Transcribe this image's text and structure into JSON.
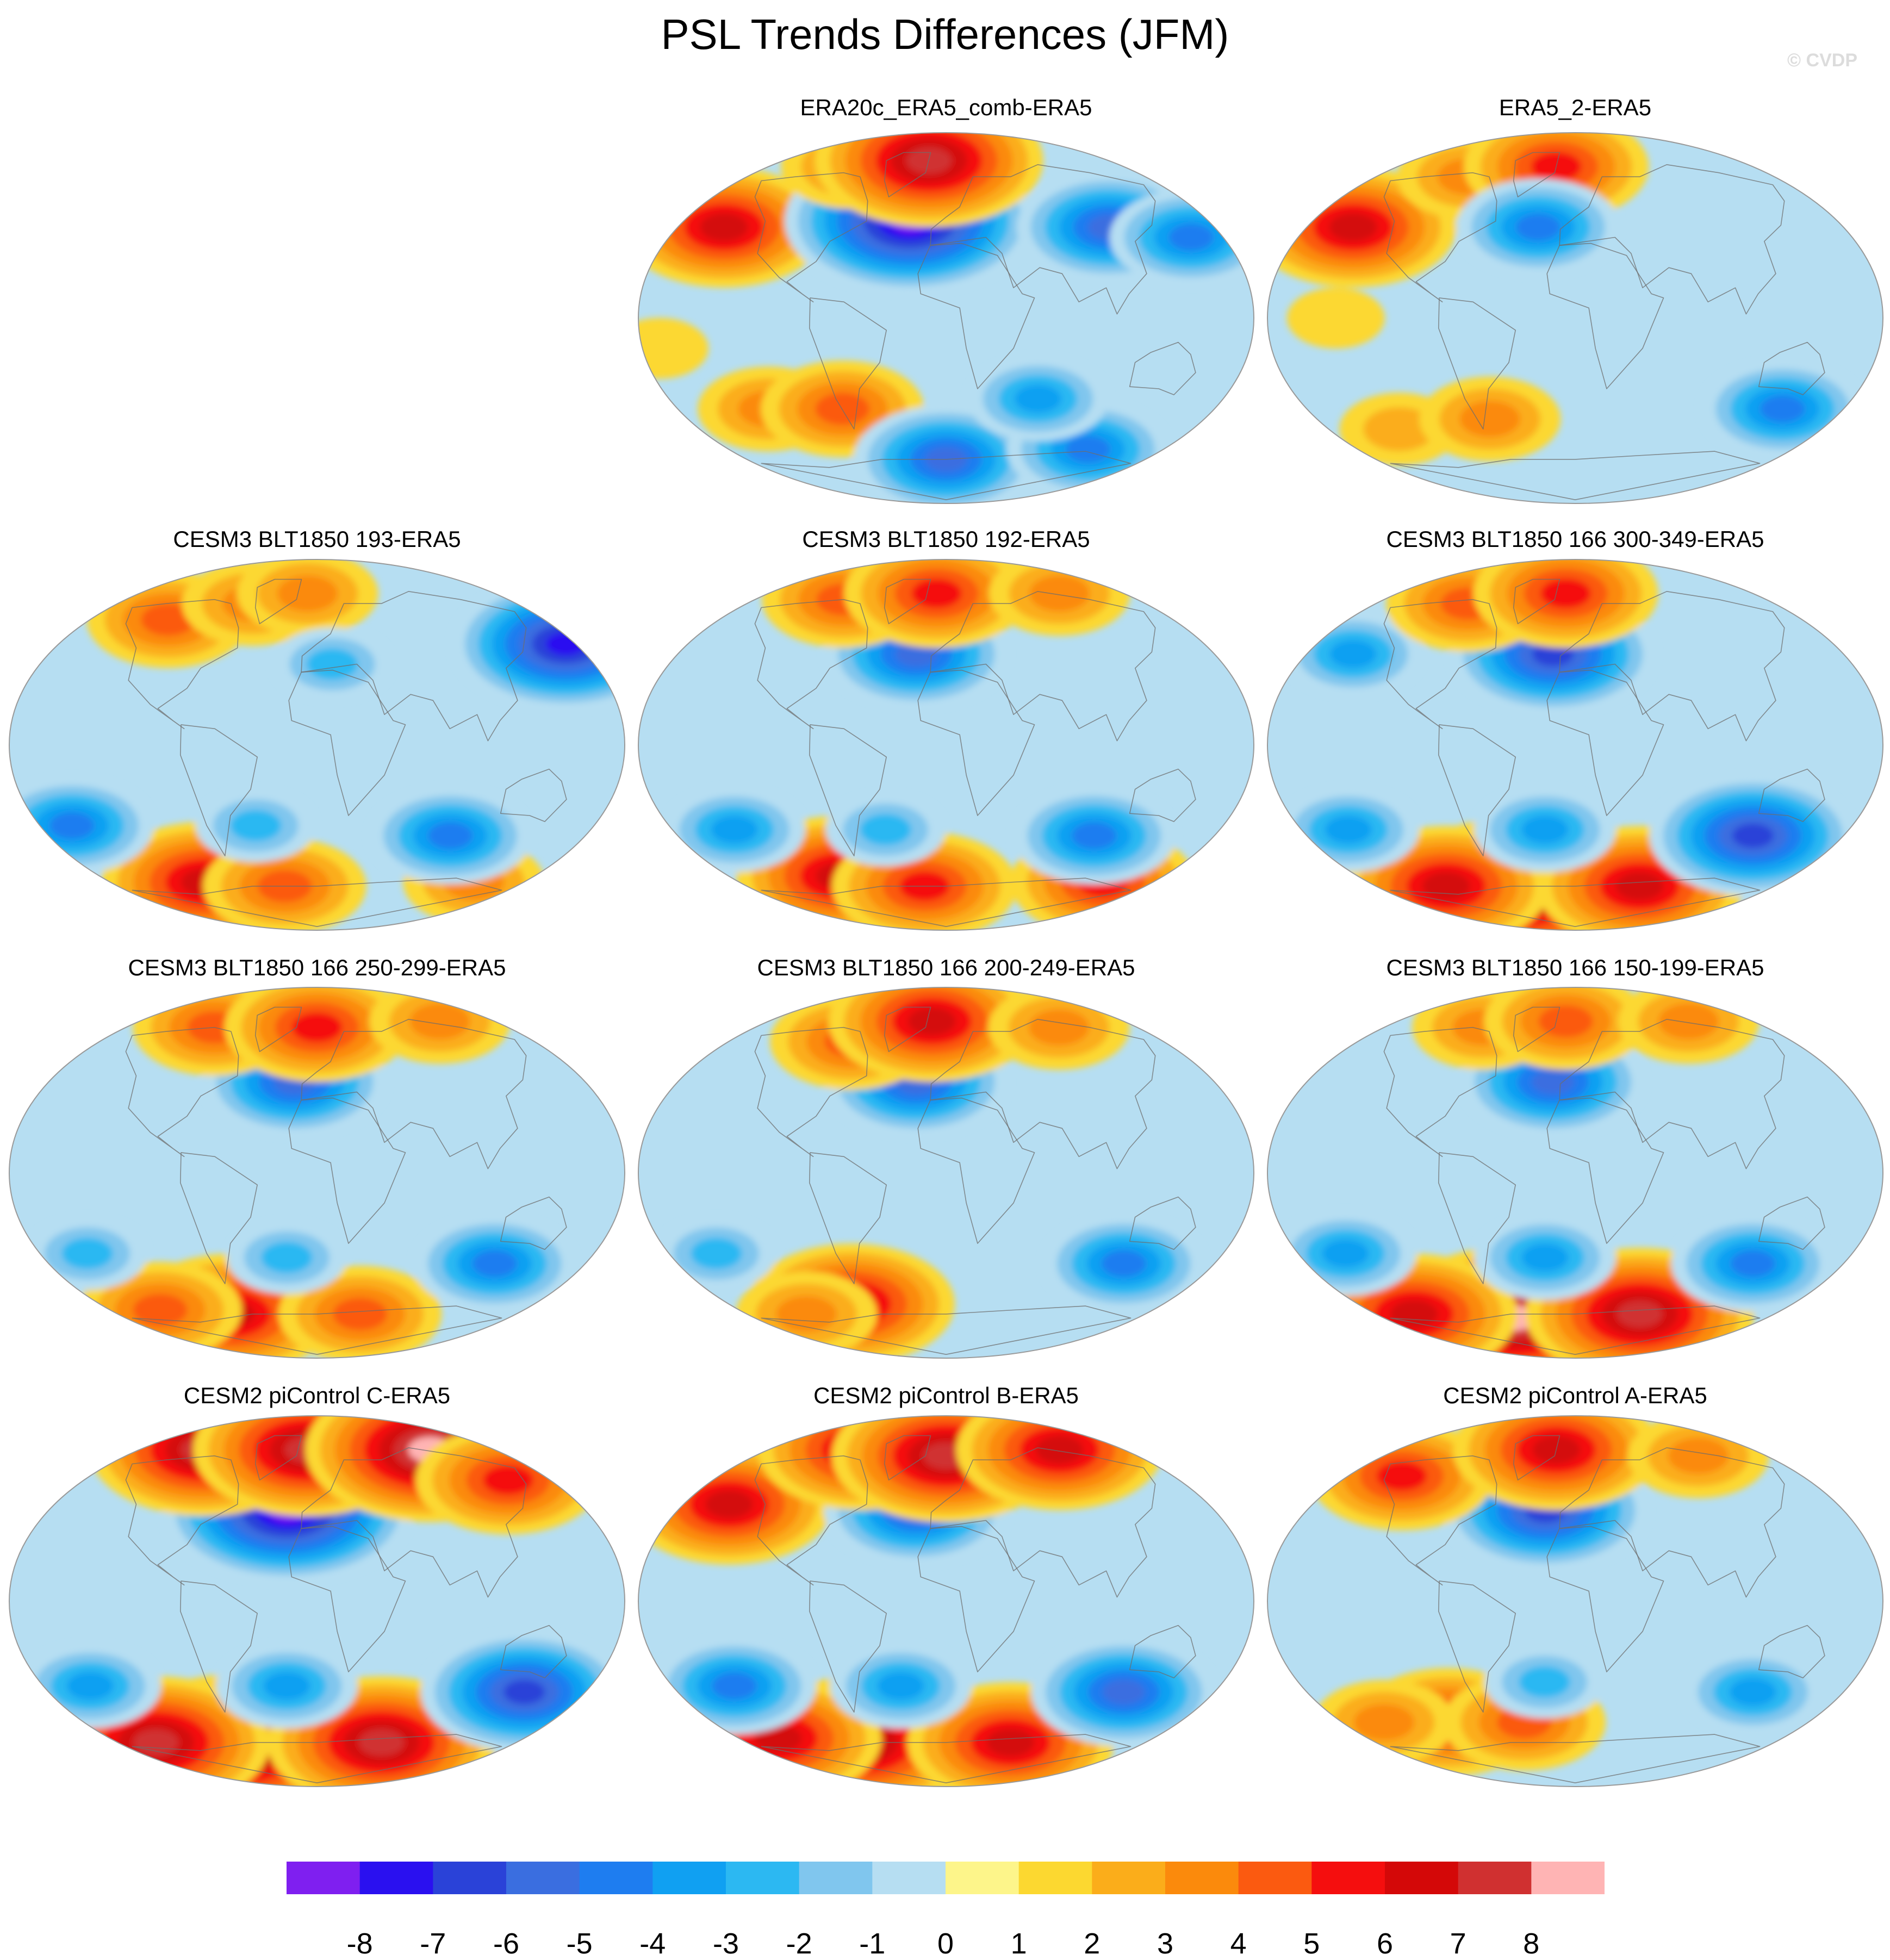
{
  "title": "PSL Trends Differences (JFM)",
  "credit": "© CVDP",
  "chart_data": {
    "type": "heatmap",
    "title": "PSL Trends Differences (JFM)",
    "projection": "robinson-like global maps",
    "panels": [
      {
        "id": "p1",
        "title": "ERA20c_ERA5_comb-ERA5",
        "blobs": [
          {
            "lon": -150,
            "lat": 45,
            "v": 6
          },
          {
            "lon": -25,
            "lat": 48,
            "v": -8
          },
          {
            "lon": -100,
            "lat": 75,
            "v": 3
          },
          {
            "lon": -20,
            "lat": 78,
            "v": 7
          },
          {
            "lon": 110,
            "lat": 45,
            "v": -5
          },
          {
            "lon": 160,
            "lat": 40,
            "v": -4
          },
          {
            "lon": -120,
            "lat": -45,
            "v": 3
          },
          {
            "lon": -70,
            "lat": -45,
            "v": 4
          },
          {
            "lon": 0,
            "lat": -70,
            "v": -5
          },
          {
            "lon": 120,
            "lat": -65,
            "v": -4
          },
          {
            "lon": 60,
            "lat": -40,
            "v": -3
          },
          {
            "lon": -170,
            "lat": -15,
            "v": 1
          }
        ]
      },
      {
        "id": "p2",
        "title": "ERA5_2-ERA5",
        "blobs": [
          {
            "lon": -150,
            "lat": 45,
            "v": 6
          },
          {
            "lon": -100,
            "lat": 70,
            "v": 3
          },
          {
            "lon": -20,
            "lat": 75,
            "v": 5
          },
          {
            "lon": -25,
            "lat": 45,
            "v": -4
          },
          {
            "lon": 140,
            "lat": -45,
            "v": -4
          },
          {
            "lon": -130,
            "lat": -55,
            "v": 2
          },
          {
            "lon": -60,
            "lat": -50,
            "v": 3
          },
          {
            "lon": -140,
            "lat": 0,
            "v": 1
          }
        ]
      },
      {
        "id": "p3",
        "title": "CESM3 BLT1850 193-ERA5",
        "blobs": [
          {
            "lon": 175,
            "lat": 50,
            "v": -7
          },
          {
            "lon": -120,
            "lat": 62,
            "v": 4
          },
          {
            "lon": -60,
            "lat": 70,
            "v": 3
          },
          {
            "lon": -10,
            "lat": 75,
            "v": 3
          },
          {
            "lon": -100,
            "lat": -68,
            "v": 6
          },
          {
            "lon": -30,
            "lat": -70,
            "v": 4
          },
          {
            "lon": 140,
            "lat": -68,
            "v": 3
          },
          {
            "lon": 90,
            "lat": -45,
            "v": -4
          },
          {
            "lon": -160,
            "lat": -40,
            "v": -4
          },
          {
            "lon": -40,
            "lat": -40,
            "v": -2
          },
          {
            "lon": 10,
            "lat": 40,
            "v": -2
          }
        ]
      },
      {
        "id": "p4",
        "title": "CESM3 BLT1850 192-ERA5",
        "blobs": [
          {
            "lon": -20,
            "lat": 45,
            "v": -5
          },
          {
            "lon": -100,
            "lat": 72,
            "v": 4
          },
          {
            "lon": -10,
            "lat": 75,
            "v": 5
          },
          {
            "lon": 120,
            "lat": 75,
            "v": 3
          },
          {
            "lon": -90,
            "lat": -65,
            "v": 6
          },
          {
            "lon": -20,
            "lat": -70,
            "v": 5
          },
          {
            "lon": 140,
            "lat": -68,
            "v": 5
          },
          {
            "lon": 100,
            "lat": -45,
            "v": -4
          },
          {
            "lon": -140,
            "lat": -42,
            "v": -3
          },
          {
            "lon": -40,
            "lat": -42,
            "v": -2
          }
        ]
      },
      {
        "id": "p5",
        "title": "CESM3 BLT1850 166 300-349-ERA5",
        "blobs": [
          {
            "lon": -15,
            "lat": 45,
            "v": -6
          },
          {
            "lon": -150,
            "lat": 45,
            "v": -3
          },
          {
            "lon": -100,
            "lat": 70,
            "v": 4
          },
          {
            "lon": -10,
            "lat": 75,
            "v": 5
          },
          {
            "lon": -60,
            "lat": -72,
            "v": 8
          },
          {
            "lon": -120,
            "lat": -70,
            "v": 6
          },
          {
            "lon": 60,
            "lat": -70,
            "v": 6
          },
          {
            "lon": 120,
            "lat": -45,
            "v": -6
          },
          {
            "lon": -150,
            "lat": -42,
            "v": -3
          },
          {
            "lon": -20,
            "lat": -42,
            "v": -3
          }
        ]
      },
      {
        "id": "p6",
        "title": "CESM3 BLT1850 166 250-299-ERA5",
        "blobs": [
          {
            "lon": -15,
            "lat": 45,
            "v": -5
          },
          {
            "lon": -100,
            "lat": 72,
            "v": 4
          },
          {
            "lon": 0,
            "lat": 72,
            "v": 5
          },
          {
            "lon": 130,
            "lat": 75,
            "v": 3
          },
          {
            "lon": -80,
            "lat": -70,
            "v": 6
          },
          {
            "lon": -140,
            "lat": -68,
            "v": 4
          },
          {
            "lon": 40,
            "lat": -70,
            "v": 4
          },
          {
            "lon": 120,
            "lat": -45,
            "v": -4
          },
          {
            "lon": -150,
            "lat": -40,
            "v": -2
          },
          {
            "lon": -20,
            "lat": -42,
            "v": -2
          }
        ]
      },
      {
        "id": "p7",
        "title": "CESM3 BLT1850 166 200-249-ERA5",
        "blobs": [
          {
            "lon": -20,
            "lat": 45,
            "v": -5
          },
          {
            "lon": -80,
            "lat": 65,
            "v": 4
          },
          {
            "lon": -15,
            "lat": 75,
            "v": 6
          },
          {
            "lon": 110,
            "lat": 72,
            "v": 3
          },
          {
            "lon": -80,
            "lat": -65,
            "v": 6
          },
          {
            "lon": -130,
            "lat": -70,
            "v": 3
          },
          {
            "lon": 120,
            "lat": -45,
            "v": -4
          },
          {
            "lon": -150,
            "lat": -40,
            "v": -2
          }
        ]
      },
      {
        "id": "p8",
        "title": "CESM3 BLT1850 166 150-199-ERA5",
        "blobs": [
          {
            "lon": -15,
            "lat": 45,
            "v": -5
          },
          {
            "lon": -90,
            "lat": 72,
            "v": 3
          },
          {
            "lon": -10,
            "lat": 75,
            "v": 4
          },
          {
            "lon": 120,
            "lat": 75,
            "v": 3
          },
          {
            "lon": -60,
            "lat": -72,
            "v": 8
          },
          {
            "lon": -150,
            "lat": -70,
            "v": 6
          },
          {
            "lon": 60,
            "lat": -70,
            "v": 7
          },
          {
            "lon": 120,
            "lat": -45,
            "v": -4
          },
          {
            "lon": -150,
            "lat": -40,
            "v": -3
          },
          {
            "lon": -20,
            "lat": -42,
            "v": -3
          }
        ]
      },
      {
        "id": "p9",
        "title": "CESM2 piControl C-ERA5",
        "blobs": [
          {
            "lon": -20,
            "lat": 45,
            "v": -8
          },
          {
            "lon": -120,
            "lat": 75,
            "v": 7
          },
          {
            "lon": -10,
            "lat": 75,
            "v": 7
          },
          {
            "lon": 120,
            "lat": 75,
            "v": 8
          },
          {
            "lon": 150,
            "lat": 60,
            "v": 5
          },
          {
            "lon": -80,
            "lat": -72,
            "v": 8
          },
          {
            "lon": -150,
            "lat": -70,
            "v": 7
          },
          {
            "lon": 60,
            "lat": -70,
            "v": 7
          },
          {
            "lon": 140,
            "lat": -45,
            "v": -6
          },
          {
            "lon": -150,
            "lat": -42,
            "v": -3
          },
          {
            "lon": -20,
            "lat": -42,
            "v": -3
          }
        ]
      },
      {
        "id": "p10",
        "title": "CESM2 piControl B-ERA5",
        "blobs": [
          {
            "lon": -150,
            "lat": 48,
            "v": 6
          },
          {
            "lon": -20,
            "lat": 45,
            "v": -5
          },
          {
            "lon": -90,
            "lat": 75,
            "v": 6
          },
          {
            "lon": 0,
            "lat": 72,
            "v": 7
          },
          {
            "lon": 120,
            "lat": 75,
            "v": 6
          },
          {
            "lon": -80,
            "lat": -70,
            "v": 7
          },
          {
            "lon": -150,
            "lat": -68,
            "v": 6
          },
          {
            "lon": 60,
            "lat": -70,
            "v": 6
          },
          {
            "lon": 120,
            "lat": -45,
            "v": -5
          },
          {
            "lon": -140,
            "lat": -42,
            "v": -4
          },
          {
            "lon": -30,
            "lat": -42,
            "v": -3
          }
        ]
      },
      {
        "id": "p11",
        "title": "CESM2 piControl A-ERA5",
        "blobs": [
          {
            "lon": -20,
            "lat": 45,
            "v": -6
          },
          {
            "lon": -140,
            "lat": 62,
            "v": 5
          },
          {
            "lon": -20,
            "lat": 75,
            "v": 6
          },
          {
            "lon": 120,
            "lat": 72,
            "v": 3
          },
          {
            "lon": -100,
            "lat": -60,
            "v": 5
          },
          {
            "lon": -40,
            "lat": -60,
            "v": 4
          },
          {
            "lon": -150,
            "lat": -60,
            "v": 3
          },
          {
            "lon": 120,
            "lat": -45,
            "v": -3
          },
          {
            "lon": -20,
            "lat": -40,
            "v": -2
          }
        ]
      }
    ],
    "colorbar": {
      "ticks": [
        "-8",
        "-7",
        "-6",
        "-5",
        "-4",
        "-3",
        "-2",
        "-1",
        "0",
        "1",
        "2",
        "3",
        "4",
        "5",
        "6",
        "7",
        "8"
      ],
      "colors": [
        "#7f1ff0",
        "#2a10f0",
        "#2a42d8",
        "#3a6ee0",
        "#1e7df0",
        "#10a0f2",
        "#2cb8f2",
        "#80c6ee",
        "#b6def2",
        "#fdf58a",
        "#fcd830",
        "#fbad1a",
        "#fb8a0c",
        "#fb5a10",
        "#f50e0e",
        "#d40808",
        "#d03030",
        "#ffb4b4"
      ]
    },
    "map_colors": {
      "ocean_base": "#b6def2",
      "coast": "#6e6e6e",
      "outline": "#999999"
    }
  }
}
